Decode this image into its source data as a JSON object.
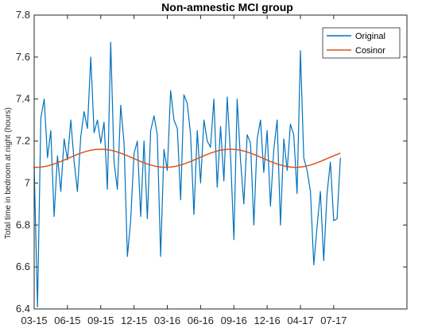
{
  "chart_data": {
    "type": "line",
    "title": "Non-amnestic MCI group",
    "xlabel": "",
    "ylabel": "Total time in bedroom at night (hours)",
    "xlim": [
      0,
      112
    ],
    "ylim": [
      6.4,
      7.8
    ],
    "x_ticks": [
      {
        "value": 0,
        "label": "03-15"
      },
      {
        "value": 10,
        "label": "06-15"
      },
      {
        "value": 20,
        "label": "09-15"
      },
      {
        "value": 30,
        "label": "12-15"
      },
      {
        "value": 40,
        "label": "03-16"
      },
      {
        "value": 50,
        "label": "06-16"
      },
      {
        "value": 60,
        "label": "09-16"
      },
      {
        "value": 70,
        "label": "12-16"
      },
      {
        "value": 80,
        "label": "04-17"
      },
      {
        "value": 90,
        "label": "07-17"
      }
    ],
    "y_ticks": [
      {
        "value": 6.4,
        "label": "6.4"
      },
      {
        "value": 6.6,
        "label": "6.6"
      },
      {
        "value": 6.8,
        "label": "6.8"
      },
      {
        "value": 7.0,
        "label": "7"
      },
      {
        "value": 7.2,
        "label": "7.2"
      },
      {
        "value": 7.4,
        "label": "7.4"
      },
      {
        "value": 7.6,
        "label": "7.6"
      },
      {
        "value": 7.8,
        "label": "7.8"
      }
    ],
    "legend_position": "top-right",
    "series": [
      {
        "name": "Original",
        "color": "#0072BD",
        "x": [
          0,
          1,
          2,
          3,
          4,
          5,
          6,
          7,
          8,
          9,
          10,
          11,
          12,
          13,
          14,
          15,
          16,
          17,
          18,
          19,
          20,
          21,
          22,
          23,
          24,
          25,
          26,
          27,
          28,
          29,
          30,
          31,
          32,
          33,
          34,
          35,
          36,
          37,
          38,
          39,
          40,
          41,
          42,
          43,
          44,
          45,
          46,
          47,
          48,
          49,
          50,
          51,
          52,
          53,
          54,
          55,
          56,
          57,
          58,
          59,
          60,
          61,
          62,
          63,
          64,
          65,
          66,
          67,
          68,
          69,
          70,
          71,
          72,
          73,
          74,
          75,
          76,
          77,
          78,
          79,
          80,
          81,
          82,
          83,
          84,
          85,
          86,
          87,
          88,
          89,
          90,
          91,
          92
        ],
        "values": [
          7.08,
          6.41,
          7.31,
          7.4,
          7.12,
          7.25,
          6.84,
          7.13,
          6.96,
          7.21,
          7.11,
          7.3,
          7.1,
          6.96,
          7.22,
          7.34,
          7.26,
          7.6,
          7.24,
          7.3,
          7.19,
          7.29,
          6.97,
          7.67,
          7.1,
          6.97,
          7.37,
          7.19,
          6.65,
          6.82,
          7.14,
          7.2,
          6.84,
          7.2,
          6.83,
          7.25,
          7.32,
          7.23,
          6.65,
          7.16,
          7.06,
          7.44,
          7.3,
          7.26,
          6.92,
          7.42,
          7.38,
          7.23,
          6.85,
          7.25,
          7.0,
          7.3,
          7.2,
          7.17,
          7.4,
          6.98,
          7.27,
          7.01,
          7.41,
          7.13,
          6.73,
          7.4,
          7.11,
          6.9,
          7.23,
          7.19,
          6.8,
          7.21,
          7.3,
          7.05,
          7.25,
          6.89,
          7.16,
          7.3,
          6.8,
          7.21,
          7.06,
          7.28,
          7.23,
          6.95,
          7.63,
          7.12,
          7.06,
          6.96,
          6.61,
          6.79,
          6.96,
          6.63,
          6.95,
          7.1,
          6.82,
          6.83,
          7.12
        ]
      },
      {
        "name": "Cosinor",
        "color": "#D95319",
        "x": [
          0,
          92
        ],
        "period": 39,
        "mean": 7.118,
        "amplitude": 0.043,
        "peak_at": 20
      }
    ]
  }
}
